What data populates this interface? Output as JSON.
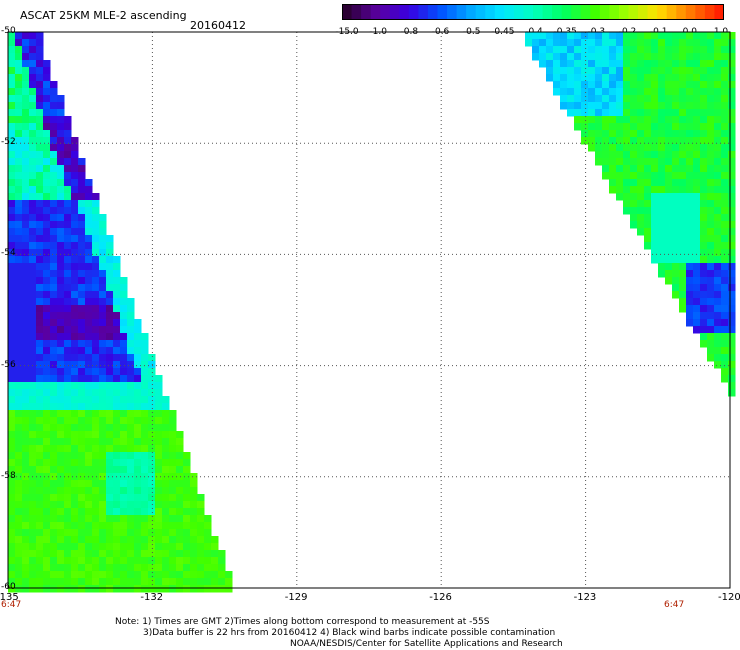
{
  "title": {
    "product": "ASCAT 25KM MLE-2 ascending",
    "date": "20160412"
  },
  "colorbar": {
    "labels": [
      "-15.0",
      "-1.0",
      "-0.8",
      "-0.6",
      "-0.5",
      "-0.45",
      "-0.4",
      "-0.35",
      "-0.3",
      "-0.2",
      "-0.1",
      "0.0",
      "1.0"
    ],
    "colors": [
      "#2b0033",
      "#5a00a0",
      "#3a00e0",
      "#0050ff",
      "#00a8ff",
      "#00e8ff",
      "#00ffc0",
      "#00ff60",
      "#40ff00",
      "#a0ff00",
      "#ffe000",
      "#ff8000",
      "#ff2000"
    ]
  },
  "axes": {
    "x_ticks": [
      "-135",
      "-132",
      "-129",
      "-126",
      "-123",
      "-120"
    ],
    "y_ticks": [
      "-50",
      "-52",
      "-54",
      "-56",
      "-58",
      "-60"
    ],
    "x_range": [
      -135,
      -120
    ],
    "y_range": [
      -50,
      -60
    ]
  },
  "times": {
    "left": "6:47",
    "right": "6:47"
  },
  "notes": [
    "Note: 1) Times are GMT 2)Times along bottom correspond to measurement at -55S",
    "3)Data buffer is 22 hrs from 20160412 4) Black wind barbs indicate possible contamination",
    "NOAA/NESDIS/Center for Satellite Applications and Research"
  ],
  "colors": {
    "gridline": "#555555",
    "frame": "#000000",
    "time_label": "#b02000"
  }
}
